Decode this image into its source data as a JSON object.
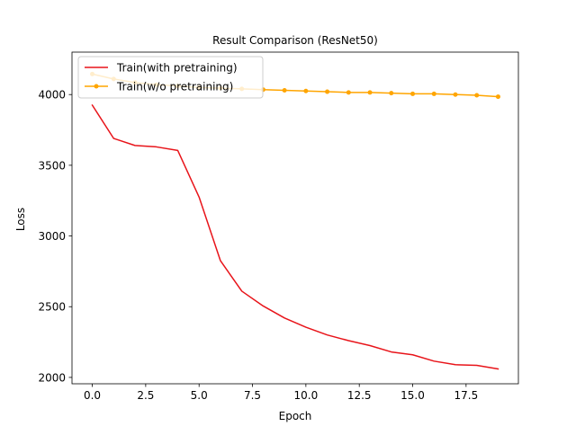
{
  "chart_data": {
    "type": "line",
    "title": "Result Comparison (ResNet50)",
    "xlabel": "Epoch",
    "ylabel": "Loss",
    "xlim": [
      -0.95,
      19.95
    ],
    "ylim": [
      1955,
      4300
    ],
    "x_ticks": [
      0.0,
      2.5,
      5.0,
      7.5,
      10.0,
      12.5,
      15.0,
      17.5
    ],
    "x_tick_labels": [
      "0.0",
      "2.5",
      "5.0",
      "7.5",
      "10.0",
      "12.5",
      "15.0",
      "17.5"
    ],
    "y_ticks": [
      2000,
      2500,
      3000,
      3500,
      4000
    ],
    "y_tick_labels": [
      "2000",
      "2500",
      "3000",
      "3500",
      "4000"
    ],
    "grid": false,
    "legend_position": "top-left",
    "x": [
      0,
      1,
      2,
      3,
      4,
      5,
      6,
      7,
      8,
      9,
      10,
      11,
      12,
      13,
      14,
      15,
      16,
      17,
      18,
      19
    ],
    "series": [
      {
        "name": "Train(with pretraining)",
        "color": "#e8141a",
        "marker": "none",
        "values": [
          3925,
          3690,
          3640,
          3630,
          3605,
          3275,
          2825,
          2610,
          2505,
          2420,
          2355,
          2300,
          2260,
          2225,
          2180,
          2160,
          2115,
          2090,
          2085,
          2060
        ]
      },
      {
        "name": "Train(w/o pretraining)",
        "color": "#ffa500",
        "marker": "circle",
        "values": [
          4145,
          4110,
          4085,
          4070,
          4060,
          4050,
          4045,
          4040,
          4035,
          4030,
          4025,
          4020,
          4015,
          4015,
          4010,
          4005,
          4005,
          4000,
          3995,
          3985
        ]
      }
    ]
  }
}
